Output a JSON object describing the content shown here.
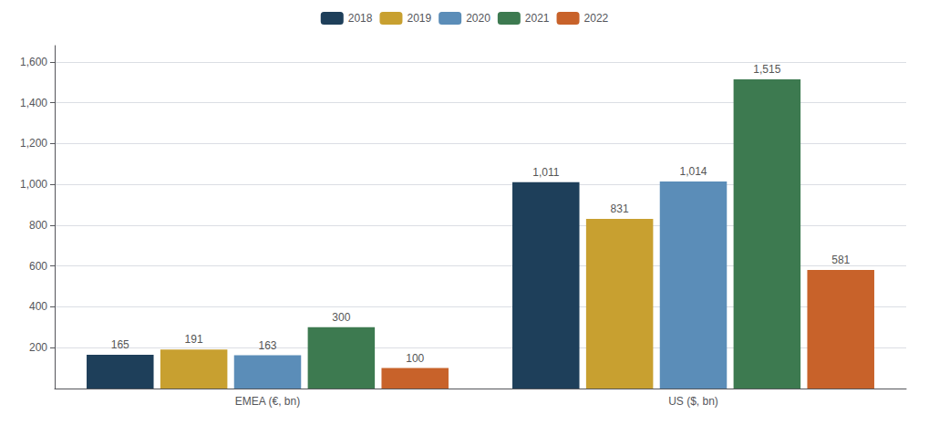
{
  "chart_data": {
    "type": "bar",
    "categories": [
      "EMEA (€, bn)",
      "US ($, bn)"
    ],
    "series": [
      {
        "name": "2018",
        "color": "#1e3f5a",
        "values": [
          165,
          1011
        ],
        "value_labels": [
          "165",
          "1,011"
        ]
      },
      {
        "name": "2019",
        "color": "#c8a030",
        "values": [
          191,
          831
        ],
        "value_labels": [
          "191",
          "831"
        ]
      },
      {
        "name": "2020",
        "color": "#5b8db8",
        "values": [
          163,
          1014
        ],
        "value_labels": [
          "163",
          "1,014"
        ]
      },
      {
        "name": "2021",
        "color": "#3d7a50",
        "values": [
          300,
          1515
        ],
        "value_labels": [
          "300",
          "1,515"
        ]
      },
      {
        "name": "2022",
        "color": "#c8622a",
        "values": [
          100,
          581
        ],
        "value_labels": [
          "100",
          "581"
        ]
      }
    ],
    "ylim": [
      0,
      1680
    ],
    "yticks": [
      200,
      400,
      600,
      800,
      {
        "value": 1000,
        "label": "1,000"
      },
      {
        "value": 1200,
        "label": "1,200"
      },
      {
        "value": 1400,
        "label": "1,400"
      },
      {
        "value": 1600,
        "label": "1,600"
      }
    ],
    "grid": true,
    "legend": "top",
    "data_labels": true
  }
}
